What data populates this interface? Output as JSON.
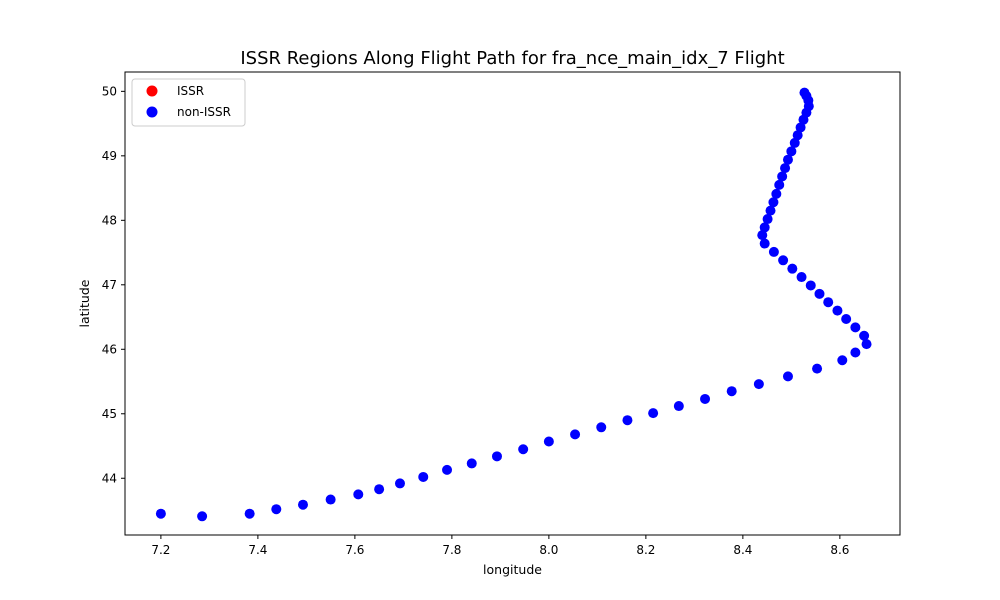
{
  "chart_data": {
    "type": "scatter",
    "title": "ISSR Regions Along Flight Path for fra_nce_main_idx_7 Flight",
    "xlabel": "longitude",
    "ylabel": "latitude",
    "xlim": [
      7.126,
      8.724
    ],
    "ylim": [
      43.12,
      50.3
    ],
    "x_ticks": [
      7.2,
      7.4,
      7.6,
      7.8,
      8.0,
      8.2,
      8.4,
      8.6
    ],
    "y_ticks": [
      44,
      45,
      46,
      47,
      48,
      49,
      50
    ],
    "x_tick_labels": [
      "7.2",
      "7.4",
      "7.6",
      "7.8",
      "8.0",
      "8.2",
      "8.4",
      "8.6"
    ],
    "y_tick_labels": [
      "44",
      "45",
      "46",
      "47",
      "48",
      "49",
      "50"
    ],
    "grid": false,
    "legend_position": "top-left",
    "series": [
      {
        "name": "ISSR",
        "color": "#ff0000",
        "points": []
      },
      {
        "name": "non-ISSR",
        "color": "#0000ff",
        "points": [
          [
            7.2,
            43.45
          ],
          [
            7.285,
            43.41
          ],
          [
            7.383,
            43.45
          ],
          [
            7.438,
            43.52
          ],
          [
            7.493,
            43.59
          ],
          [
            7.55,
            43.67
          ],
          [
            7.607,
            43.75
          ],
          [
            7.65,
            43.83
          ],
          [
            7.693,
            43.92
          ],
          [
            7.741,
            44.02
          ],
          [
            7.79,
            44.13
          ],
          [
            7.841,
            44.23
          ],
          [
            7.893,
            44.34
          ],
          [
            7.947,
            44.45
          ],
          [
            8.0,
            44.57
          ],
          [
            8.054,
            44.68
          ],
          [
            8.108,
            44.79
          ],
          [
            8.162,
            44.9
          ],
          [
            8.215,
            45.01
          ],
          [
            8.268,
            45.12
          ],
          [
            8.322,
            45.23
          ],
          [
            8.377,
            45.35
          ],
          [
            8.433,
            45.46
          ],
          [
            8.493,
            45.58
          ],
          [
            8.553,
            45.7
          ],
          [
            8.605,
            45.83
          ],
          [
            8.632,
            45.95
          ],
          [
            8.655,
            46.08
          ],
          [
            8.65,
            46.21
          ],
          [
            8.632,
            46.34
          ],
          [
            8.613,
            46.47
          ],
          [
            8.595,
            46.6
          ],
          [
            8.576,
            46.73
          ],
          [
            8.558,
            46.86
          ],
          [
            8.54,
            46.99
          ],
          [
            8.521,
            47.12
          ],
          [
            8.502,
            47.25
          ],
          [
            8.483,
            47.38
          ],
          [
            8.464,
            47.51
          ],
          [
            8.445,
            47.64
          ],
          [
            8.44,
            47.77
          ],
          [
            8.445,
            47.89
          ],
          [
            8.451,
            48.02
          ],
          [
            8.457,
            48.15
          ],
          [
            8.463,
            48.28
          ],
          [
            8.469,
            48.41
          ],
          [
            8.475,
            48.55
          ],
          [
            8.481,
            48.68
          ],
          [
            8.487,
            48.81
          ],
          [
            8.493,
            48.94
          ],
          [
            8.5,
            49.07
          ],
          [
            8.507,
            49.2
          ],
          [
            8.513,
            49.32
          ],
          [
            8.519,
            49.44
          ],
          [
            8.525,
            49.56
          ],
          [
            8.531,
            49.67
          ],
          [
            8.536,
            49.77
          ],
          [
            8.535,
            49.86
          ],
          [
            8.531,
            49.93
          ],
          [
            8.527,
            49.98
          ]
        ]
      }
    ]
  }
}
